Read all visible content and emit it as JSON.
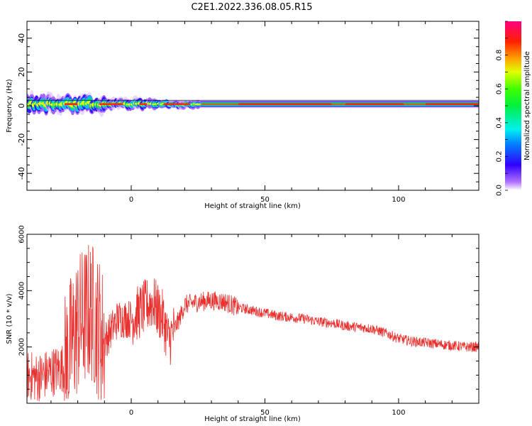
{
  "figure_title": "C2E1.2022.336.08.05.R15",
  "chart_data": [
    {
      "type": "heatmap",
      "title": "",
      "xlabel": "Height of straight line (km)",
      "ylabel": "Frequency (Hz)",
      "xlim": [
        -39,
        130
      ],
      "ylim": [
        -50,
        50
      ],
      "xticks": [
        0,
        50,
        100
      ],
      "yticks": [
        -40,
        -20,
        0,
        20,
        40
      ],
      "grid": false,
      "colorbar": {
        "label": "Normalized spectral amplitude",
        "range": [
          0,
          1
        ],
        "ticks": [
          0.0,
          0.2,
          0.4,
          0.6,
          0.8
        ],
        "colormap": "hsv-rainbow"
      },
      "signal_band": {
        "center_hz": 1,
        "note": "narrow band around 0 Hz across full height range, more scattered below 10 km"
      }
    },
    {
      "type": "line",
      "title": "",
      "xlabel": "Height of straight line (km)",
      "ylabel": "SNR (10 * v/v)",
      "xlim": [
        -39,
        130
      ],
      "ylim": [
        0,
        6000
      ],
      "xticks": [
        0,
        50,
        100
      ],
      "yticks": [
        2000,
        4000,
        6000
      ],
      "grid": false,
      "color": "#e8312f",
      "series": [
        {
          "name": "",
          "x": [
            -39,
            -35,
            -30,
            -25,
            -20,
            -15,
            -10,
            -5,
            0,
            5,
            8,
            12,
            14,
            18,
            20,
            25,
            30,
            35,
            40,
            45,
            50,
            55,
            60,
            65,
            70,
            75,
            80,
            85,
            90,
            95,
            100,
            105,
            110,
            115,
            120,
            125,
            130
          ],
          "values": [
            1000,
            900,
            1100,
            1300,
            2800,
            3300,
            2200,
            3000,
            3000,
            3400,
            3600,
            3000,
            2200,
            3000,
            3500,
            3600,
            3650,
            3600,
            3400,
            3300,
            3200,
            3100,
            3050,
            3000,
            2900,
            2850,
            2750,
            2700,
            2650,
            2500,
            2300,
            2200,
            2150,
            2100,
            2050,
            2000,
            2000
          ]
        }
      ]
    }
  ]
}
